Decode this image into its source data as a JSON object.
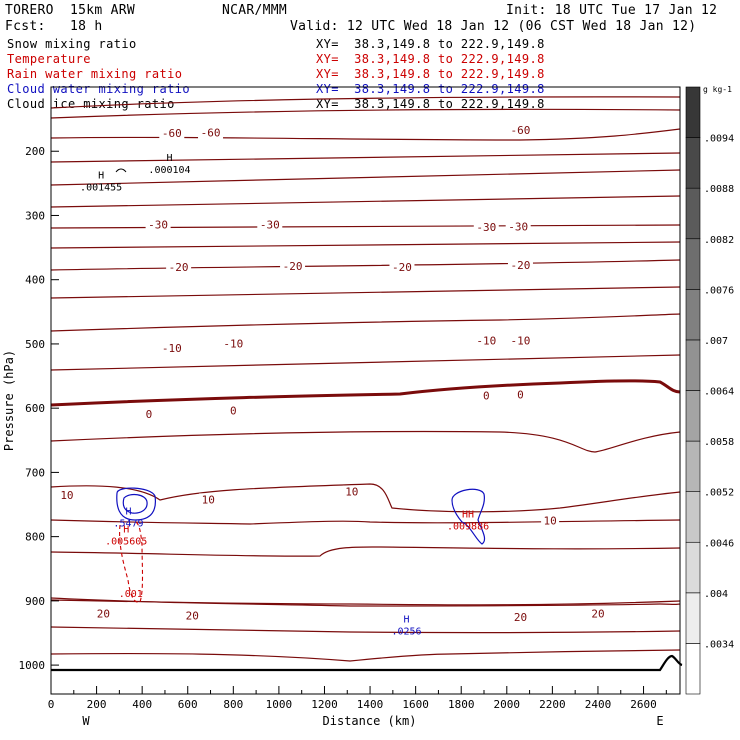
{
  "header": {
    "model": "TORERO  15km ARW",
    "org": "NCAR/MMM",
    "init": "Init: 18 UTC Tue 17 Jan 12",
    "fcst": "Fcst:   18 h",
    "valid": "Valid: 12 UTC Wed 18 Jan 12 (06 CST Wed 18 Jan 12)"
  },
  "legend": [
    {
      "name": "Snow mixing ratio",
      "xy": "XY=  38.3,149.8 to 222.9,149.8",
      "color": "#000000"
    },
    {
      "name": "Temperature",
      "xy": "XY=  38.3,149.8 to 222.9,149.8",
      "color": "#cc0000"
    },
    {
      "name": "Rain water mixing ratio",
      "xy": "XY=  38.3,149.8 to 222.9,149.8",
      "color": "#cc0000"
    },
    {
      "name": "Cloud water mixing ratio",
      "xy": "XY=  38.3,149.8 to 222.9,149.8",
      "color": "#1010c0"
    },
    {
      "name": "Cloud ice mixing ratio",
      "xy": "XY=  38.3,149.8 to 222.9,149.8",
      "color": "#000000"
    }
  ],
  "chart_data": {
    "type": "contour_cross_section",
    "xlabel": "Distance (km)",
    "ylabel": "Pressure (hPa)",
    "xlim": [
      0,
      2760
    ],
    "ylim": [
      1045,
      100
    ],
    "x_ticks": [
      0,
      200,
      400,
      600,
      800,
      1000,
      1200,
      1400,
      1600,
      1800,
      2000,
      2200,
      2400,
      2600
    ],
    "y_ticks": [
      200,
      300,
      400,
      500,
      600,
      700,
      800,
      900,
      1000
    ],
    "endpoints": {
      "left": "W",
      "right": "E"
    },
    "colorbar": {
      "units": "g kg-1",
      "labels": [
        ".0034",
        ".004",
        ".0046",
        ".0052",
        ".0058",
        ".0064",
        ".007",
        ".0076",
        ".0082",
        ".0088",
        ".0094"
      ]
    },
    "temperature_labels": [
      {
        "text": "-60",
        "x": 530,
        "p": 172
      },
      {
        "text": "-60",
        "x": 700,
        "p": 171
      },
      {
        "text": "-60",
        "x": 2060,
        "p": 167
      },
      {
        "text": "-30",
        "x": 470,
        "p": 314
      },
      {
        "text": "-30",
        "x": 960,
        "p": 314
      },
      {
        "text": "-30",
        "x": 1910,
        "p": 318
      },
      {
        "text": "-30",
        "x": 2050,
        "p": 317
      },
      {
        "text": "-20",
        "x": 560,
        "p": 380
      },
      {
        "text": "-20",
        "x": 1060,
        "p": 379
      },
      {
        "text": "-20",
        "x": 1540,
        "p": 380
      },
      {
        "text": "-20",
        "x": 2060,
        "p": 377
      },
      {
        "text": "-10",
        "x": 530,
        "p": 506
      },
      {
        "text": "-10",
        "x": 800,
        "p": 499
      },
      {
        "text": "-10",
        "x": 1910,
        "p": 495
      },
      {
        "text": "-10",
        "x": 2060,
        "p": 495
      },
      {
        "text": "0",
        "x": 430,
        "p": 609
      },
      {
        "text": "0",
        "x": 800,
        "p": 604
      },
      {
        "text": "0",
        "x": 1910,
        "p": 580
      },
      {
        "text": "0",
        "x": 2060,
        "p": 579
      },
      {
        "text": "10",
        "x": 70,
        "p": 735
      },
      {
        "text": "10",
        "x": 690,
        "p": 742
      },
      {
        "text": "10",
        "x": 1320,
        "p": 730
      },
      {
        "text": "10",
        "x": 2190,
        "p": 775
      },
      {
        "text": "20",
        "x": 230,
        "p": 920
      },
      {
        "text": "20",
        "x": 620,
        "p": 923
      },
      {
        "text": "20",
        "x": 2060,
        "p": 925
      },
      {
        "text": "20",
        "x": 2400,
        "p": 920
      }
    ],
    "extrema_labels": [
      {
        "mark": "H",
        "value": ".000104",
        "x": 520,
        "p": 220,
        "field": "snow"
      },
      {
        "mark": "H",
        "value": ".001455",
        "x": 220,
        "p": 247,
        "field": "snow"
      },
      {
        "mark": "H",
        "value": ".5479",
        "x": 340,
        "p": 770,
        "field": "cloud water"
      },
      {
        "mark": "H",
        "value": ".005605",
        "x": 330,
        "p": 798,
        "field": "rain water"
      },
      {
        "mark": "",
        "value": ".001",
        "x": 350,
        "p": 880,
        "field": "rain water"
      },
      {
        "mark": "HH",
        "value": ".009886",
        "x": 1830,
        "p": 775,
        "field": "rain water"
      },
      {
        "mark": "H",
        "value": ".0256",
        "x": 1560,
        "p": 938,
        "field": "cloud water"
      }
    ]
  }
}
